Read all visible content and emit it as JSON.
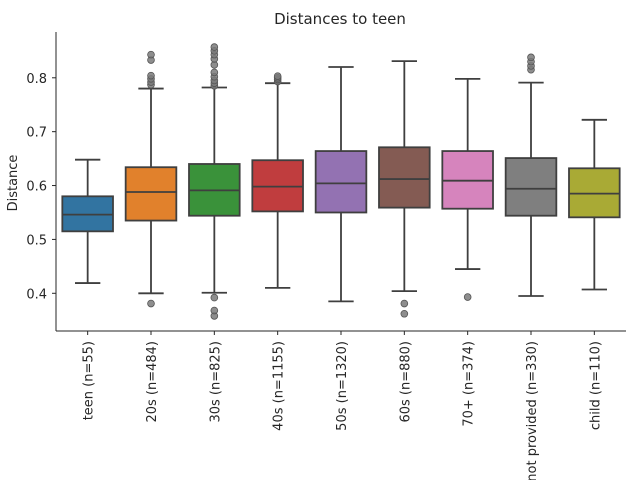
{
  "chart_data": {
    "type": "box",
    "title": "Distances to teen",
    "xlabel": "",
    "ylabel": "Distance",
    "ylim": [
      0.33,
      0.885
    ],
    "yticks": [
      0.4,
      0.5,
      0.6,
      0.7,
      0.8
    ],
    "ytick_labels": [
      "0.4",
      "0.5",
      "0.6",
      "0.7",
      "0.8"
    ],
    "grid": false,
    "categories": [
      "teen (n=55)",
      "20s (n=484)",
      "30s (n=825)",
      "40s (n=1155)",
      "50s (n=1320)",
      "60s (n=880)",
      "70+ (n=374)",
      "not provided (n=330)",
      "child (n=110)"
    ],
    "colors": [
      "#3274a1",
      "#e1812c",
      "#3a923a",
      "#c03d3e",
      "#9372b2",
      "#845b53",
      "#d684bd",
      "#7f7f7f",
      "#a9aa35"
    ],
    "boxes": [
      {
        "whislo": 0.419,
        "q1": 0.515,
        "med": 0.546,
        "q3": 0.58,
        "whishi": 0.648,
        "fliers": []
      },
      {
        "whislo": 0.4,
        "q1": 0.535,
        "med": 0.588,
        "q3": 0.634,
        "whishi": 0.78,
        "fliers": [
          0.381,
          0.787,
          0.792,
          0.798,
          0.804,
          0.833,
          0.843
        ]
      },
      {
        "whislo": 0.401,
        "q1": 0.544,
        "med": 0.591,
        "q3": 0.64,
        "whishi": 0.782,
        "fliers": [
          0.358,
          0.368,
          0.392,
          0.785,
          0.79,
          0.795,
          0.802,
          0.81,
          0.824,
          0.835,
          0.843,
          0.85,
          0.857
        ]
      },
      {
        "whislo": 0.41,
        "q1": 0.552,
        "med": 0.598,
        "q3": 0.647,
        "whishi": 0.79,
        "fliers": [
          0.793,
          0.797,
          0.8,
          0.803
        ]
      },
      {
        "whislo": 0.385,
        "q1": 0.55,
        "med": 0.604,
        "q3": 0.664,
        "whishi": 0.82,
        "fliers": []
      },
      {
        "whislo": 0.404,
        "q1": 0.559,
        "med": 0.612,
        "q3": 0.671,
        "whishi": 0.831,
        "fliers": [
          0.362,
          0.381
        ]
      },
      {
        "whislo": 0.445,
        "q1": 0.557,
        "med": 0.609,
        "q3": 0.664,
        "whishi": 0.798,
        "fliers": [
          0.393
        ]
      },
      {
        "whislo": 0.395,
        "q1": 0.544,
        "med": 0.594,
        "q3": 0.651,
        "whishi": 0.791,
        "fliers": [
          0.815,
          0.822,
          0.83,
          0.838
        ]
      },
      {
        "whislo": 0.407,
        "q1": 0.541,
        "med": 0.585,
        "q3": 0.632,
        "whishi": 0.722,
        "fliers": []
      }
    ]
  }
}
